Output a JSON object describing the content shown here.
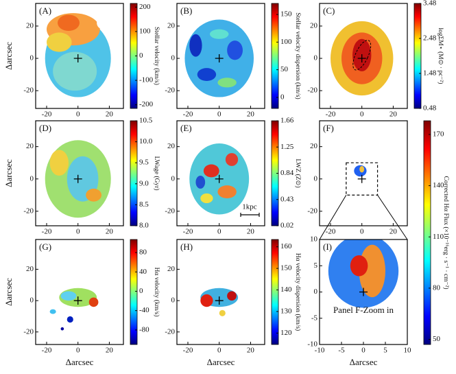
{
  "chart_data": [
    {
      "type": "image",
      "title": "(A)",
      "ylabel": "Δarcsec",
      "xlim": [
        -27,
        29
      ],
      "ylim": [
        -31,
        34
      ],
      "xticks": [
        -20,
        0,
        20
      ],
      "yticks": [
        -20,
        0,
        20
      ],
      "colorbar": {
        "label": "Stellar velocity (km/s)",
        "lim": [
          -215,
          215
        ],
        "ticks": [
          200,
          100,
          0,
          -100,
          -200
        ]
      }
    },
    {
      "type": "image",
      "title": "(B)",
      "xlim": [
        -27,
        29
      ],
      "ylim": [
        -31,
        34
      ],
      "xticks": [
        -20,
        0,
        20
      ],
      "yticks": [
        -20,
        0,
        20
      ],
      "colorbar": {
        "label": "Stellar velocity dispersion (km/s)",
        "lim": [
          -20,
          170
        ],
        "ticks": [
          150,
          100,
          50,
          0
        ]
      }
    },
    {
      "type": "image",
      "title": "(C)",
      "xlim": [
        -27,
        29
      ],
      "ylim": [
        -31,
        34
      ],
      "xticks": [
        -20,
        0,
        20
      ],
      "yticks": [
        -20,
        0,
        20
      ],
      "colorbar": {
        "label": "logΣM⋆ (M⊙ · pc⁻²)",
        "lim": [
          0.48,
          3.48
        ],
        "ticks": [
          3.48,
          2.48,
          1.48,
          0.48
        ]
      }
    },
    {
      "type": "image",
      "title": "(D)",
      "ylabel": "Δarcsec",
      "xlim": [
        -27,
        29
      ],
      "ylim": [
        -29,
        36
      ],
      "xticks": [
        -20,
        0,
        20
      ],
      "yticks": [
        -20,
        0,
        20
      ],
      "colorbar": {
        "label": "LWage (Gyr)",
        "lim": [
          8.0,
          10.5
        ],
        "ticks": [
          10.5,
          {
            "value": 10,
            "label": "10.0"
          },
          9.5,
          {
            "value": 9,
            "label": "9.0"
          },
          8.5,
          {
            "value": 8,
            "label": "8.0"
          }
        ]
      }
    },
    {
      "type": "image",
      "title": "(E)",
      "annotation": "1kpc",
      "xlim": [
        -27,
        29
      ],
      "ylim": [
        -29,
        36
      ],
      "xticks": [
        -20,
        0,
        20
      ],
      "yticks": [
        -20,
        0,
        20
      ],
      "colorbar": {
        "label": "LWZ (Z⊙)",
        "lim": [
          0.02,
          1.66
        ],
        "ticks": [
          1.66,
          1.25,
          0.84,
          0.43,
          0.02
        ]
      }
    },
    {
      "type": "image",
      "title": "(F)",
      "xlim": [
        -27,
        29
      ],
      "ylim": [
        -29,
        36
      ],
      "xticks": [
        -20,
        0,
        20
      ],
      "yticks": [
        -20,
        0,
        20
      ],
      "colorbar": {
        "label": "Corrected Hα Flux (×10⁻¹⁶erg · s⁻¹ · cm⁻²)",
        "lim": [
          47,
          178
        ],
        "ticks": [
          170,
          140,
          110,
          80,
          50
        ]
      }
    },
    {
      "type": "image",
      "title": "(G)",
      "ylabel": "Δarcsec",
      "xlabel": "Δarcsec",
      "xlim": [
        -27,
        29
      ],
      "ylim": [
        -28,
        39
      ],
      "xticks": [
        -20,
        0,
        20
      ],
      "yticks": [
        -20,
        0,
        20
      ],
      "colorbar": {
        "label": "Hα velocity (km/s)",
        "lim": [
          -110,
          107
        ],
        "ticks": [
          80,
          40,
          0,
          -40,
          -80
        ]
      }
    },
    {
      "type": "image",
      "title": "(H)",
      "xlabel": "Δarcsec",
      "xlim": [
        -27,
        29
      ],
      "ylim": [
        -28,
        39
      ],
      "xticks": [
        -20,
        0,
        20
      ],
      "yticks": [
        -20,
        0,
        20
      ],
      "colorbar": {
        "label": "Hα velocity dispersion (km/s)",
        "lim": [
          114.7,
          163.4
        ],
        "ticks": [
          160,
          150,
          140,
          130,
          120
        ]
      }
    },
    {
      "type": "image",
      "title": "(I)",
      "annotation": "Panel F-Zoom in",
      "xlabel": "Δarcsec",
      "xlim": [
        -10,
        10
      ],
      "ylim": [
        -10,
        10
      ],
      "xticks": [
        -10,
        -5,
        0,
        5,
        10
      ],
      "yticks": [
        -10,
        -5,
        0,
        5,
        10
      ]
    }
  ]
}
